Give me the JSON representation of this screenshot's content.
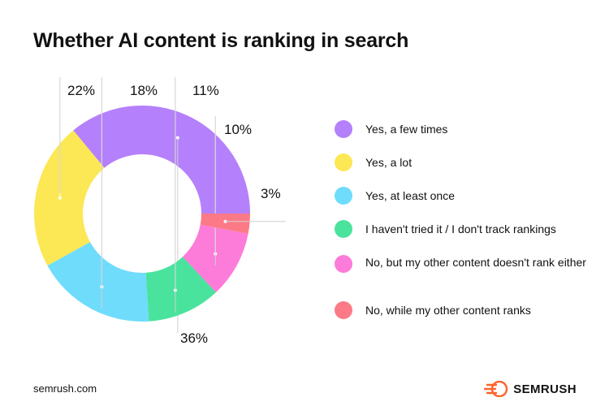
{
  "title": "Whether AI content is ranking in search",
  "footer": {
    "source": "semrush.com",
    "brand": "SEMRUSH",
    "brand_icon": "semrush-flame-logo",
    "brand_color": "#ff642d"
  },
  "chart_data": {
    "type": "pie",
    "variant": "donut",
    "title": "Whether AI content is ranking in search",
    "legend_position": "right",
    "slices": [
      {
        "label": "Yes, a few times",
        "value": 36,
        "display": "36%",
        "color": "#b580fb"
      },
      {
        "label": "Yes, a lot",
        "value": 22,
        "display": "22%",
        "color": "#fce755"
      },
      {
        "label": "Yes, at least once",
        "value": 18,
        "display": "18%",
        "color": "#6fdcfc"
      },
      {
        "label": "I haven't tried it / I don't track rankings",
        "value": 11,
        "display": "11%",
        "color": "#4ae39d"
      },
      {
        "label": "No, but my other content doesn't rank either",
        "value": 10,
        "display": "10%",
        "color": "#fd7bd9"
      },
      {
        "label": "No, while my other content ranks",
        "value": 3,
        "display": "3%",
        "color": "#fc7a87"
      }
    ]
  }
}
